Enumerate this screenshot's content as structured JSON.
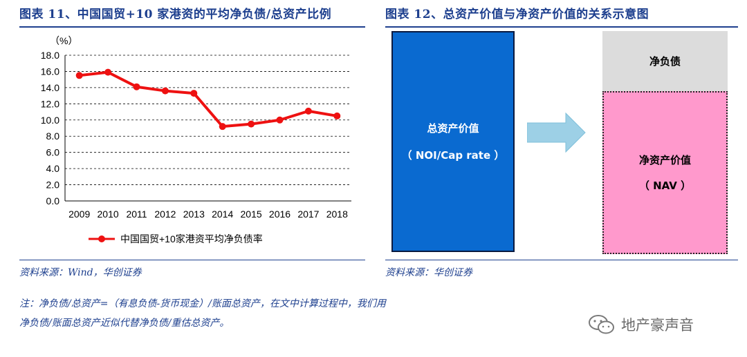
{
  "left_panel": {
    "title": "图表 11、中国国贸+10 家港资的平均净负债/总资产比例",
    "source": "资料来源：Wind，华创证券"
  },
  "right_panel": {
    "title": "图表 12、总资产价值与净资产价值的关系示意图",
    "source": "资料来源：华创证券",
    "total_assets_label": "总资产价值",
    "total_assets_sub": "（ NOI/Cap rate ）",
    "net_debt_label": "净负债",
    "nav_label": "净资产价值",
    "nav_sub": "（ NAV ）",
    "colors": {
      "total_assets": "#0a6ad0",
      "net_debt": "#dcdcdc",
      "nav": "#ff99cc",
      "arrow": "#9dd0e6"
    }
  },
  "note": "注：净负债/总资产=（有息负债-货币现金）/账面总资产，在文中计算过程中，我们用净负债/账面总资产近似代替净负债/重估总资产。",
  "watermark": {
    "text": "地产豪声音",
    "icon": "wechat-icon"
  },
  "chart_data": {
    "type": "line",
    "unit_label": "（%）",
    "categories": [
      "2009",
      "2010",
      "2011",
      "2012",
      "2013",
      "2014",
      "2015",
      "2016",
      "2017",
      "2018"
    ],
    "series": [
      {
        "name": "中国国贸+10家港资平均净负债率",
        "color": "#ee1111",
        "values": [
          15.5,
          15.9,
          14.1,
          13.6,
          13.3,
          9.2,
          9.5,
          10.0,
          11.1,
          10.5
        ]
      }
    ],
    "ylim": [
      0,
      18
    ],
    "yticks": [
      "0.0",
      "2.0",
      "4.0",
      "6.0",
      "8.0",
      "10.0",
      "12.0",
      "14.0",
      "16.0",
      "18.0"
    ],
    "grid": true,
    "grid_style": "dashed",
    "legend_position": "bottom"
  }
}
